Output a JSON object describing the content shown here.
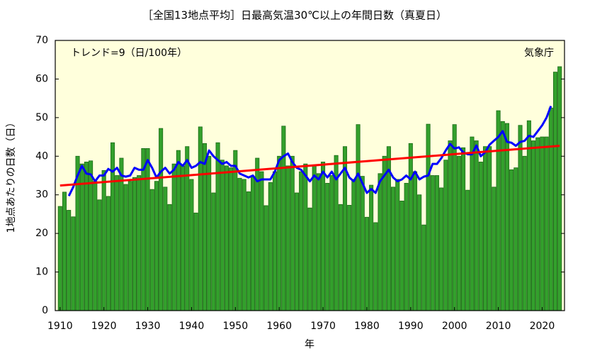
{
  "chart_data": {
    "type": "bar",
    "title": "［全国13地点平均］日最高気温30℃以上の年間日数（真夏日）",
    "annotation": "トレンド=9（日/100年）",
    "source": "気象庁",
    "xlabel": "年",
    "ylabel": "1地点あたりの日数（日）",
    "xlim": [
      1908.9,
      2025.1
    ],
    "xticks": [
      1910,
      1920,
      1930,
      1940,
      1950,
      1960,
      1970,
      1980,
      1990,
      2000,
      2010,
      2020
    ],
    "ylim": [
      0,
      70
    ],
    "yticks": [
      0,
      10,
      20,
      30,
      40,
      50,
      60,
      70
    ],
    "series": [
      {
        "type": "bar",
        "color": "#33a02c",
        "x": [
          1910,
          1911,
          1912,
          1913,
          1914,
          1915,
          1916,
          1917,
          1918,
          1919,
          1920,
          1921,
          1922,
          1923,
          1924,
          1925,
          1926,
          1927,
          1928,
          1929,
          1930,
          1931,
          1932,
          1933,
          1934,
          1935,
          1936,
          1937,
          1938,
          1939,
          1940,
          1941,
          1942,
          1943,
          1944,
          1945,
          1946,
          1947,
          1948,
          1949,
          1950,
          1951,
          1952,
          1953,
          1954,
          1955,
          1956,
          1957,
          1958,
          1959,
          1960,
          1961,
          1962,
          1963,
          1964,
          1965,
          1966,
          1967,
          1968,
          1969,
          1970,
          1971,
          1972,
          1973,
          1974,
          1975,
          1976,
          1977,
          1978,
          1979,
          1980,
          1981,
          1982,
          1983,
          1984,
          1985,
          1986,
          1987,
          1988,
          1989,
          1990,
          1991,
          1992,
          1993,
          1994,
          1995,
          1996,
          1997,
          1998,
          1999,
          2000,
          2001,
          2002,
          2003,
          2004,
          2005,
          2006,
          2007,
          2008,
          2009,
          2010,
          2011,
          2012,
          2013,
          2014,
          2015,
          2016,
          2017,
          2018,
          2019,
          2020,
          2021,
          2022,
          2023,
          2024
        ],
        "values": [
          27,
          30.7,
          26,
          24.3,
          40,
          38,
          38.5,
          38.8,
          33.5,
          28.7,
          36.3,
          29.6,
          43.5,
          35,
          39.5,
          32.7,
          33.5,
          34.5,
          35,
          42,
          42,
          31.4,
          33.5,
          47.2,
          32,
          27.5,
          38,
          41.5,
          37.5,
          42.5,
          34,
          25.3,
          47.6,
          43.3,
          40,
          30.5,
          43.5,
          39,
          37.5,
          37,
          41.5,
          34.3,
          34,
          30.8,
          34.7,
          39.5,
          36,
          27.2,
          33.2,
          36,
          40,
          47.8,
          37.5,
          40,
          30.5,
          36,
          38,
          26.6,
          37.5,
          35.5,
          38.5,
          33,
          35,
          40.2,
          27.5,
          42.5,
          27.3,
          34,
          48.2,
          34.8,
          24.2,
          32.5,
          22.8,
          35.5,
          40,
          42.5,
          32,
          34,
          28.4,
          33,
          43.3,
          36,
          30,
          22.2,
          48.3,
          35,
          35,
          31.8,
          39,
          44,
          48.2,
          40,
          42.2,
          31.2,
          45,
          44,
          38.5,
          42.5,
          42.5,
          32,
          51.8,
          49,
          48.5,
          36.5,
          37,
          48,
          40,
          49.2,
          44,
          44.8,
          45,
          45,
          52.5,
          61.8,
          63.2
        ]
      },
      {
        "type": "line",
        "color": "#0000ff",
        "x": [
          1912,
          1913,
          1914,
          1915,
          1916,
          1917,
          1918,
          1919,
          1920,
          1921,
          1922,
          1923,
          1924,
          1925,
          1926,
          1927,
          1928,
          1929,
          1930,
          1931,
          1932,
          1933,
          1934,
          1935,
          1936,
          1937,
          1938,
          1939,
          1940,
          1941,
          1942,
          1943,
          1944,
          1945,
          1946,
          1947,
          1948,
          1949,
          1950,
          1951,
          1952,
          1953,
          1954,
          1955,
          1956,
          1957,
          1958,
          1959,
          1960,
          1961,
          1962,
          1963,
          1964,
          1965,
          1966,
          1967,
          1968,
          1969,
          1970,
          1971,
          1972,
          1973,
          1974,
          1975,
          1976,
          1977,
          1978,
          1979,
          1980,
          1981,
          1982,
          1983,
          1984,
          1985,
          1986,
          1987,
          1988,
          1989,
          1990,
          1991,
          1992,
          1993,
          1994,
          1995,
          1996,
          1997,
          1998,
          1999,
          2000,
          2001,
          2002,
          2003,
          2004,
          2005,
          2006,
          2007,
          2008,
          2009,
          2010,
          2011,
          2012,
          2013,
          2014,
          2015,
          2016,
          2017,
          2018,
          2019,
          2020,
          2021,
          2022
        ],
        "values": [
          29.7,
          32,
          35,
          37.5,
          35.5,
          35.3,
          33.5,
          35,
          35,
          36.7,
          36,
          37,
          35,
          34.7,
          35,
          37,
          36.5,
          36.5,
          39,
          37,
          34.5,
          36,
          37,
          35.5,
          36.5,
          38.5,
          37.5,
          39,
          37,
          37.5,
          38.5,
          38,
          41.5,
          40,
          39,
          38,
          38.5,
          37.5,
          37.5,
          35.5,
          35,
          34.5,
          35,
          33.5,
          34,
          34,
          34,
          36,
          39,
          40,
          40.7,
          38.5,
          37,
          36.5,
          35,
          33.5,
          35,
          34,
          36,
          34.5,
          36,
          34,
          35.5,
          37,
          34.5,
          33.5,
          35.5,
          33,
          30.5,
          31.5,
          30.5,
          33.5,
          35,
          36.5,
          34.5,
          33.5,
          34,
          35,
          34,
          36,
          34,
          34.7,
          35,
          38,
          38,
          39.5,
          41.5,
          43.2,
          42,
          42.3,
          41,
          40.5,
          40.5,
          42.8,
          40,
          41,
          43,
          44,
          45,
          46.5,
          43.7,
          43.5,
          42.7,
          43.7,
          44,
          45.3,
          45,
          46.5,
          48,
          50,
          53
        ]
      },
      {
        "type": "line",
        "color": "#ff0000",
        "x": [
          1910,
          2024
        ],
        "values": [
          32.4,
          42.7
        ]
      }
    ]
  }
}
